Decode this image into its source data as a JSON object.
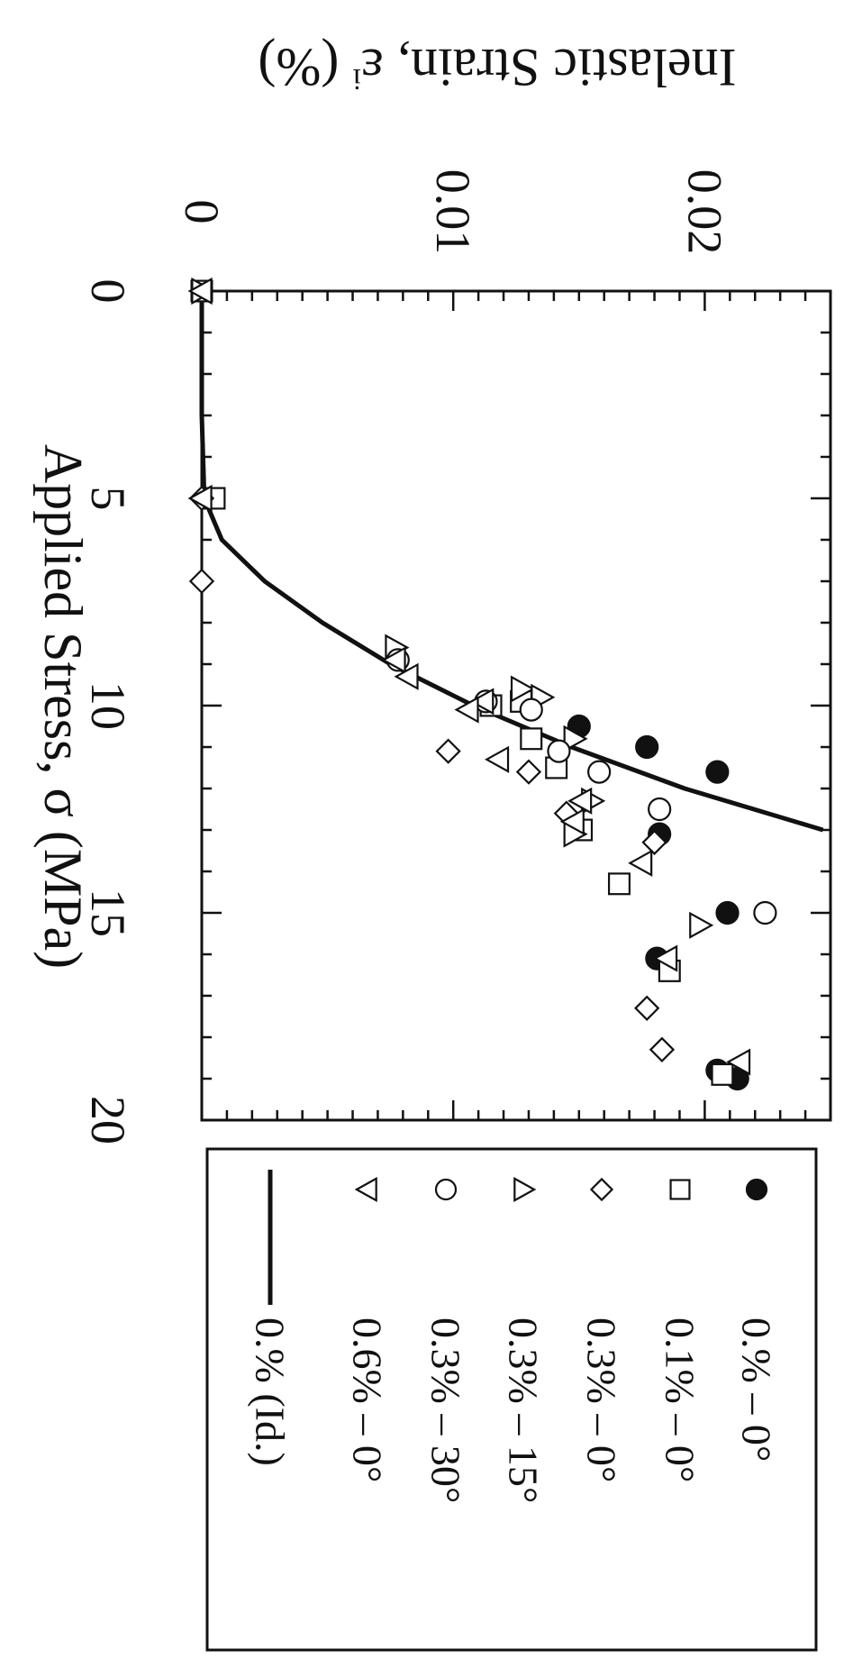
{
  "chart_data": {
    "type": "scatter",
    "title": "",
    "xlabel": "Applied Stress, σ (MPa)",
    "ylabel_main": "Inelastic Strain, ε",
    "ylabel_sup": "i",
    "ylabel_unit": " (%)",
    "xlim": [
      0,
      20
    ],
    "ylim": [
      0,
      0.025
    ],
    "x_ticks": [
      "0",
      "5",
      "10",
      "15",
      "20"
    ],
    "y_ticks": [
      "0",
      "0.01",
      "0.02"
    ],
    "grid": false,
    "orientation": "rotated 90° clockwise on page",
    "legend_position": "right",
    "series": [
      {
        "name": "0.% – 0°",
        "marker": "filled-circle",
        "points": [
          [
            10.5,
            0.015
          ],
          [
            11,
            0.0177
          ],
          [
            11.6,
            0.0205
          ],
          [
            13.1,
            0.0182
          ],
          [
            15,
            0.0209
          ],
          [
            16.1,
            0.0181
          ],
          [
            19,
            0.0213
          ],
          [
            18.8,
            0.0205
          ]
        ]
      },
      {
        "name": "0.1% – 0°",
        "marker": "open-square",
        "points": [
          [
            0,
            0
          ],
          [
            5,
            0.0005
          ],
          [
            10,
            0.0115
          ],
          [
            9.9,
            0.0127
          ],
          [
            10.8,
            0.0131
          ],
          [
            11.5,
            0.0141
          ],
          [
            13,
            0.0151
          ],
          [
            14.3,
            0.0166
          ],
          [
            16.4,
            0.0186
          ],
          [
            18.9,
            0.0207
          ]
        ]
      },
      {
        "name": "0.3% – 0°",
        "marker": "open-diamond",
        "points": [
          [
            5,
            0
          ],
          [
            7,
            0
          ],
          [
            11.1,
            0.0098
          ],
          [
            11.6,
            0.013
          ],
          [
            12.6,
            0.0145
          ],
          [
            13.3,
            0.018
          ],
          [
            17.3,
            0.0177
          ],
          [
            18.3,
            0.0183
          ]
        ]
      },
      {
        "name": "0.3% – 15°",
        "marker": "open-triangle-right",
        "points": [
          [
            0,
            0
          ],
          [
            8.6,
            0.0077
          ],
          [
            9.6,
            0.0127
          ],
          [
            9.8,
            0.0135
          ],
          [
            10.8,
            0.0148
          ],
          [
            12.3,
            0.0155
          ],
          [
            13.1,
            0.0148
          ],
          [
            15.3,
            0.0198
          ]
        ]
      },
      {
        "name": "0.3% – 30°",
        "marker": "open-circle",
        "points": [
          [
            8.9,
            0.0078
          ],
          [
            9.9,
            0.0113
          ],
          [
            10.1,
            0.0131
          ],
          [
            11.1,
            0.0142
          ],
          [
            11.6,
            0.0158
          ],
          [
            12.5,
            0.0182
          ],
          [
            15,
            0.0224
          ]
        ]
      },
      {
        "name": "0.6% – 0°",
        "marker": "open-triangle-left",
        "points": [
          [
            0,
            0
          ],
          [
            5,
            0
          ],
          [
            8.9,
            0.0077
          ],
          [
            9.3,
            0.0082
          ],
          [
            9.9,
            0.0112
          ],
          [
            10.1,
            0.0106
          ],
          [
            11.3,
            0.0118
          ],
          [
            12.8,
            0.0148
          ],
          [
            12.3,
            0.0151
          ],
          [
            13.8,
            0.0175
          ],
          [
            16.1,
            0.0185
          ],
          [
            18.6,
            0.0214
          ]
        ]
      },
      {
        "name": "0.% (Id.)",
        "marker": "line",
        "points": [
          [
            0,
            0
          ],
          [
            3,
            0
          ],
          [
            5,
            0.0001
          ],
          [
            6,
            0.0008
          ],
          [
            7,
            0.0025
          ],
          [
            8,
            0.0048
          ],
          [
            9,
            0.0075
          ],
          [
            10,
            0.0108
          ],
          [
            11,
            0.0147
          ],
          [
            12,
            0.0192
          ],
          [
            13,
            0.0247
          ]
        ]
      }
    ]
  }
}
